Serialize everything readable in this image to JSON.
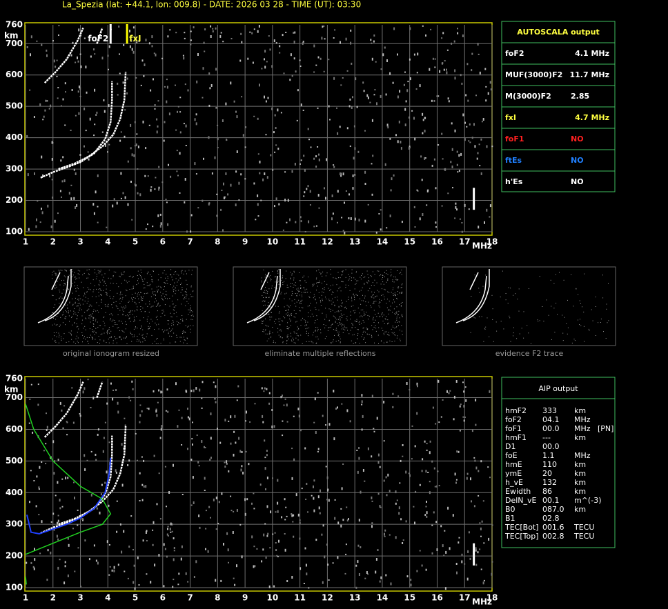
{
  "header": {
    "title": "La_Spezia (lat: +44.1, lon: 009.8) - DATE: 2026 03 28 - TIME (UT): 03:30"
  },
  "ionogram_top": {
    "y_unit": "km",
    "y_labels": [
      "760",
      "700",
      "600",
      "500",
      "400",
      "300",
      "200",
      "100"
    ],
    "x_unit": "MHz",
    "x_labels": [
      "1",
      "2",
      "3",
      "4",
      "5",
      "6",
      "7",
      "8",
      "9",
      "10",
      "11",
      "12",
      "13",
      "14",
      "15",
      "16",
      "17",
      "18"
    ],
    "markers": [
      "foF2",
      "fxI"
    ]
  },
  "thumbnails": [
    "original ionogram resized",
    "eliminate multiple reflections",
    "evidence F2 trace"
  ],
  "ionogram_bottom": {
    "y_unit": "km",
    "y_labels": [
      "760",
      "700",
      "600",
      "500",
      "400",
      "300",
      "200",
      "100"
    ],
    "x_unit": "MHz",
    "x_labels": [
      "1",
      "2",
      "3",
      "4",
      "5",
      "6",
      "7",
      "8",
      "9",
      "10",
      "11",
      "12",
      "13",
      "14",
      "15",
      "16",
      "17",
      "18"
    ]
  },
  "autoscala": {
    "title": "AUTOSCALA output",
    "rows": [
      [
        "foF2",
        "4.1 MHz"
      ],
      [
        "MUF(3000)F2",
        "11.7 MHz"
      ],
      [
        "M(3000)F2",
        "2.85"
      ],
      [
        "fxI",
        "4.7 MHz"
      ],
      [
        "foF1",
        "NO"
      ],
      [
        "ftEs",
        "NO"
      ],
      [
        "h'Es",
        "NO"
      ]
    ]
  },
  "aip": {
    "title": "AIP output",
    "rows": [
      [
        "hmF2",
        "333",
        "km"
      ],
      [
        "foF2",
        "04.1",
        "MHz"
      ],
      [
        "foF1",
        "00.0",
        "MHz",
        "[PN]"
      ],
      [
        "hmF1",
        "---",
        "km"
      ],
      [
        "D1",
        "00.0"
      ],
      [
        "foE",
        "1.1",
        "MHz"
      ],
      [
        "hmE",
        "110",
        "km"
      ],
      [
        "ymE",
        "20",
        "km"
      ],
      [
        "h_vE",
        "132",
        "km"
      ],
      [
        "Ewidth",
        "86",
        "km"
      ],
      [
        "DelN_vE",
        "00.1",
        "m^(-3)"
      ],
      [
        "B0",
        "087.0",
        "km"
      ],
      [
        "B1",
        "02.8"
      ],
      [
        "TEC[Bot]",
        "001.6",
        "TECU"
      ],
      [
        "TEC[Top]",
        "002.8",
        "TECU"
      ]
    ]
  }
}
